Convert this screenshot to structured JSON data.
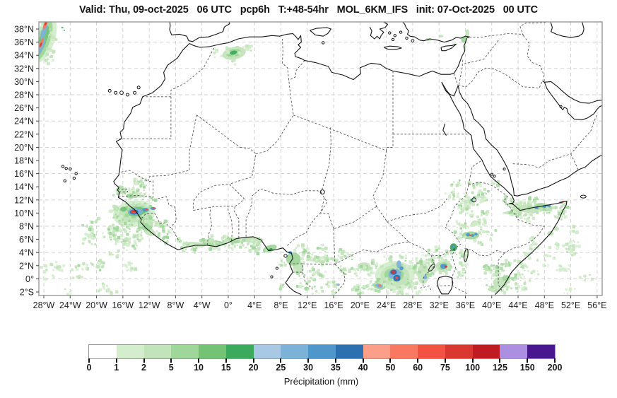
{
  "title": "Valid: Thu, 09-oct-2025   06 UTC   pcp6h   T:+48-54hr   MOL_6KM_IFS   init: 07-Oct-2025   00 UTC",
  "header": {
    "valid": "Thu, 09-oct-2025 06 UTC",
    "variable": "pcp6h",
    "lead": "T:+48-54hr",
    "model": "MOL_6KM_IFS",
    "init": "07-Oct-2025 00 UTC"
  },
  "axes": {
    "lon_tick_labels": [
      "28°W",
      "24°W",
      "20°W",
      "16°W",
      "12°W",
      "8°W",
      "4°W",
      "0°",
      "4°E",
      "8°E",
      "12°E",
      "16°E",
      "20°E",
      "24°E",
      "28°E",
      "32°E",
      "36°E",
      "40°E",
      "44°E",
      "48°E",
      "52°E",
      "56°E"
    ],
    "lon_tick_values": [
      -28,
      -24,
      -20,
      -16,
      -12,
      -8,
      -4,
      0,
      4,
      8,
      12,
      16,
      20,
      24,
      28,
      32,
      36,
      40,
      44,
      48,
      52,
      56
    ],
    "lat_tick_labels": [
      "38°N",
      "36°N",
      "34°N",
      "32°N",
      "30°N",
      "28°N",
      "26°N",
      "24°N",
      "22°N",
      "20°N",
      "18°N",
      "16°N",
      "14°N",
      "12°N",
      "10°N",
      "8°N",
      "6°N",
      "4°N",
      "2°N",
      "0°",
      "2°S"
    ],
    "lat_tick_values": [
      38,
      36,
      34,
      32,
      30,
      28,
      26,
      24,
      22,
      20,
      18,
      16,
      14,
      12,
      10,
      8,
      6,
      4,
      2,
      0,
      -2
    ],
    "lat_grid_values": [
      36,
      32,
      28,
      24,
      20,
      16,
      12,
      8,
      4,
      0
    ]
  },
  "colorbar": {
    "caption": "Précipitation (mm)",
    "levels": [
      "0",
      "1",
      "2",
      "5",
      "10",
      "15",
      "20",
      "25",
      "30",
      "35",
      "40",
      "50",
      "60",
      "75",
      "100",
      "125",
      "150",
      "200"
    ],
    "colors": [
      "#ffffff",
      "#d3edcd",
      "#c3e3ba",
      "#9fd69a",
      "#73c276",
      "#3caa5c",
      "#a9c8e4",
      "#7db2d8",
      "#4f96ca",
      "#2c70b0",
      "#fb9f88",
      "#f97862",
      "#f15244",
      "#d93831",
      "#bf1b23",
      "#ab90e1",
      "#49188e"
    ]
  },
  "chart_data": {
    "type": "heatmap",
    "subtype": "precipitation-forecast-map",
    "title": "Valid: Thu, 09-oct-2025 06 UTC pcp6h T:+48-54hr MOL_6KM_IFS init: 07-Oct-2025 00 UTC",
    "colorbar_label": "Précipitation (mm)",
    "colorbar_bounds_mm": [
      0,
      1,
      2,
      5,
      10,
      15,
      20,
      25,
      30,
      35,
      40,
      50,
      60,
      75,
      100,
      125,
      150,
      200
    ],
    "lon_range": [
      -28.7,
      56.8
    ],
    "lat_range": [
      -2.3,
      39.1
    ],
    "grid_step_deg": 4,
    "grid": "dashed gray every 4 degrees",
    "regions_summary": [
      "Intense cell ~75-100 mm near Guinea coast (14W, 10N) ringed by 20-40 mm blues and wide 1-10 mm greens",
      "Convective cluster over DR Congo (25E, 0-1N) with 35-100 mm cores",
      "Cell NE of Lake Victoria (33E, 2N) with 30-100 mm core",
      "Scattered 1-10 mm over Ethiopia, Gulf of Aden coast and Somalia with small 30-75 mm specks",
      "Frontal band in NE Atlantic corner (28W, 34-39N) with 25-100 mm core",
      "Isolated 2-20 mm blob over northern Algeria (1E, 34N)",
      "Light 1-10 mm band along Gulf of Guinea coast"
    ],
    "blobs_lon_lat_rx_ry_rot_lvl": [
      [
        -27.9,
        36.3,
        1.5,
        3.6,
        20,
        1
      ],
      [
        -28.1,
        36.2,
        1.0,
        3.2,
        20,
        3
      ],
      [
        -28.3,
        36.0,
        0.6,
        2.6,
        22,
        4
      ],
      [
        -28.4,
        35.3,
        0.35,
        1.4,
        22,
        7
      ],
      [
        -28.0,
        37.6,
        0.35,
        1.2,
        22,
        7
      ],
      [
        -28.35,
        35.9,
        0.2,
        0.8,
        22,
        11
      ],
      [
        -27.8,
        38.6,
        0.25,
        0.7,
        22,
        11
      ],
      [
        -27.7,
        38.9,
        0.15,
        0.4,
        22,
        13
      ],
      [
        -28.45,
        35.6,
        0.12,
        0.4,
        22,
        13
      ],
      [
        -25.2,
        38.2,
        0.16,
        0.11,
        0,
        5
      ],
      [
        -24.9,
        37.8,
        0.13,
        0.1,
        0,
        5
      ],
      [
        0.9,
        34.3,
        1.8,
        0.95,
        -12,
        2
      ],
      [
        0.85,
        34.35,
        1.15,
        0.6,
        -12,
        3
      ],
      [
        0.8,
        34.4,
        0.55,
        0.3,
        -12,
        5
      ],
      [
        -0.9,
        33.9,
        0.35,
        0.2,
        0,
        1
      ],
      [
        30.4,
        36.4,
        0.5,
        0.22,
        0,
        2
      ],
      [
        32.3,
        36.9,
        0.35,
        0.2,
        0,
        2
      ],
      [
        35.8,
        36.4,
        0.45,
        0.5,
        0,
        3
      ],
      [
        36.3,
        37.4,
        0.3,
        0.55,
        0,
        2
      ],
      [
        35.9,
        35.3,
        0.25,
        0.3,
        0,
        2
      ],
      [
        -14.3,
        9.9,
        3.2,
        2.0,
        -8,
        1
      ],
      [
        -14.2,
        10.0,
        2.4,
        1.4,
        -8,
        2
      ],
      [
        -14.0,
        10.15,
        1.8,
        0.95,
        -8,
        3
      ],
      [
        -13.9,
        10.2,
        1.35,
        0.7,
        -8,
        4
      ],
      [
        -14.1,
        10.2,
        1.05,
        0.55,
        0,
        7
      ],
      [
        -14.3,
        10.15,
        0.65,
        0.38,
        0,
        9
      ],
      [
        -14.35,
        10.2,
        0.42,
        0.26,
        0,
        12
      ],
      [
        -14.4,
        10.25,
        0.25,
        0.15,
        0,
        13
      ],
      [
        -12.55,
        10.5,
        0.5,
        0.3,
        0,
        8
      ],
      [
        -12.4,
        10.55,
        0.2,
        0.12,
        0,
        12
      ],
      [
        -11.4,
        10.7,
        0.45,
        0.22,
        0,
        8
      ],
      [
        -11.25,
        10.72,
        0.2,
        0.1,
        0,
        12
      ],
      [
        -15.9,
        10.6,
        0.5,
        0.35,
        0,
        4
      ],
      [
        -12.6,
        8.3,
        1.2,
        0.9,
        30,
        3
      ],
      [
        -12.0,
        7.2,
        0.9,
        0.6,
        30,
        2
      ],
      [
        -16.3,
        13.4,
        0.8,
        0.5,
        0,
        2
      ],
      [
        -14.8,
        12.6,
        0.7,
        0.4,
        0,
        3
      ],
      [
        9.4,
        4.0,
        0.3,
        0.2,
        0,
        8
      ],
      [
        9.9,
        3.0,
        1.1,
        1.0,
        0,
        3
      ],
      [
        10.6,
        1.8,
        0.8,
        1.0,
        0,
        2
      ],
      [
        16.7,
        -0.9,
        0.25,
        0.18,
        0,
        7
      ],
      [
        11.9,
        -1.5,
        0.4,
        0.3,
        0,
        3
      ],
      [
        -5.0,
        5.2,
        1.6,
        0.4,
        5,
        2
      ],
      [
        -2.2,
        5.4,
        1.7,
        0.45,
        3,
        3
      ],
      [
        0.8,
        5.9,
        1.4,
        0.4,
        3,
        2
      ],
      [
        3.8,
        5.9,
        1.5,
        0.45,
        0,
        2
      ],
      [
        6.3,
        4.6,
        1.1,
        0.5,
        -20,
        3
      ],
      [
        6.4,
        4.45,
        0.35,
        0.2,
        -20,
        5
      ],
      [
        25.3,
        0.5,
        3.0,
        2.2,
        0,
        1
      ],
      [
        25.3,
        0.5,
        2.2,
        1.6,
        0,
        2
      ],
      [
        25.2,
        0.6,
        1.5,
        1.05,
        0,
        3
      ],
      [
        25.3,
        0.7,
        1.0,
        0.8,
        0,
        7
      ],
      [
        25.6,
        0.1,
        0.55,
        0.5,
        0,
        9
      ],
      [
        25.1,
        1.0,
        0.5,
        0.4,
        0,
        9
      ],
      [
        25.05,
        1.05,
        0.3,
        0.25,
        0,
        13
      ],
      [
        25.55,
        0.15,
        0.2,
        0.18,
        0,
        12
      ],
      [
        25.9,
        2.2,
        0.35,
        0.6,
        0,
        7
      ],
      [
        26.3,
        1.6,
        0.3,
        0.3,
        0,
        8
      ],
      [
        22.9,
        -1.1,
        0.95,
        0.5,
        15,
        3
      ],
      [
        22.9,
        -1.05,
        0.6,
        0.3,
        15,
        7
      ],
      [
        22.95,
        -1.0,
        0.25,
        0.15,
        0,
        11
      ],
      [
        20.6,
        1.9,
        1.0,
        0.6,
        0,
        2
      ],
      [
        29.6,
        0.8,
        0.9,
        1.6,
        0,
        2
      ],
      [
        29.9,
        0.2,
        0.3,
        0.3,
        0,
        7
      ],
      [
        32.7,
        1.9,
        1.2,
        0.9,
        0,
        2
      ],
      [
        32.65,
        1.9,
        0.8,
        0.6,
        0,
        3
      ],
      [
        32.7,
        1.9,
        0.5,
        0.4,
        0,
        8
      ],
      [
        33.05,
        1.85,
        0.2,
        0.15,
        0,
        13
      ],
      [
        34.2,
        4.8,
        0.55,
        0.6,
        0,
        5
      ],
      [
        34.15,
        4.9,
        0.22,
        0.2,
        0,
        8
      ],
      [
        36.8,
        6.6,
        1.3,
        0.6,
        0,
        3
      ],
      [
        36.4,
        6.7,
        0.3,
        0.25,
        0,
        8
      ],
      [
        37.1,
        6.6,
        0.28,
        0.2,
        0,
        8
      ],
      [
        37.6,
        6.8,
        0.25,
        0.2,
        0,
        8
      ],
      [
        36.75,
        6.6,
        0.15,
        0.12,
        0,
        12
      ],
      [
        36.9,
        11.8,
        0.5,
        0.4,
        0,
        3
      ],
      [
        36.9,
        12.0,
        0.2,
        0.18,
        0,
        7
      ],
      [
        45.6,
        10.6,
        1.5,
        0.65,
        8,
        2
      ],
      [
        47.8,
        10.9,
        1.4,
        0.6,
        8,
        3
      ],
      [
        46.8,
        10.8,
        0.3,
        0.2,
        0,
        8
      ],
      [
        48.0,
        11.0,
        0.3,
        0.2,
        0,
        8
      ],
      [
        48.7,
        11.1,
        0.28,
        0.18,
        0,
        8
      ],
      [
        50.5,
        11.6,
        0.3,
        0.2,
        0,
        7
      ],
      [
        50.75,
        11.7,
        0.18,
        0.13,
        0,
        12
      ],
      [
        43.9,
        10.3,
        0.8,
        0.4,
        0,
        2
      ],
      [
        48.9,
        6.9,
        0.5,
        0.35,
        0,
        2
      ],
      [
        49.8,
        7.6,
        0.4,
        0.3,
        0,
        2
      ],
      [
        41.3,
        -0.6,
        1.1,
        0.9,
        0,
        2
      ],
      [
        42.2,
        0.1,
        0.6,
        0.45,
        0,
        3
      ],
      [
        40.6,
        -1.6,
        0.8,
        0.5,
        0,
        2
      ],
      [
        54.9,
        0.6,
        0.2,
        0.12,
        0,
        2
      ]
    ],
    "speckle_fields_box_n_seed_levels": [
      [
        -23,
        1,
        -13.5,
        9,
        150,
        7,
        [
          1,
          1,
          2,
          2,
          3
        ]
      ],
      [
        -17.5,
        5.5,
        -9,
        12.8,
        200,
        11,
        [
          1,
          2,
          2,
          3,
          3
        ]
      ],
      [
        -17,
        12.5,
        -12.5,
        15.3,
        70,
        3,
        [
          1,
          2,
          2,
          3
        ]
      ],
      [
        -8,
        4.3,
        7.5,
        6.4,
        150,
        13,
        [
          1,
          2,
          2,
          3
        ]
      ],
      [
        8,
        -2.2,
        19,
        5,
        180,
        17,
        [
          1,
          2,
          2,
          3
        ]
      ],
      [
        19,
        -2.2,
        31.5,
        3.6,
        250,
        23,
        [
          1,
          1,
          2,
          2,
          3
        ]
      ],
      [
        29,
        0,
        36,
        5.2,
        130,
        29,
        [
          1,
          2,
          2,
          3
        ]
      ],
      [
        33,
        4,
        40.5,
        14.5,
        200,
        31,
        [
          1,
          1,
          2,
          2,
          3
        ]
      ],
      [
        42,
        9.3,
        51,
        12.2,
        150,
        37,
        [
          1,
          2,
          2,
          3
        ]
      ],
      [
        45,
        2,
        53,
        8.5,
        90,
        41,
        [
          1,
          1,
          2
        ]
      ],
      [
        38.5,
        -2.2,
        45,
        2.5,
        120,
        43,
        [
          1,
          2,
          2,
          3
        ]
      ],
      [
        44,
        -2.2,
        56.5,
        2,
        40,
        47,
        [
          1,
          1,
          2
        ]
      ],
      [
        -28.5,
        -2.2,
        -14,
        2.5,
        70,
        53,
        [
          1,
          1,
          2
        ]
      ],
      [
        -28.6,
        33,
        -26.2,
        39.4,
        60,
        59,
        [
          1,
          2,
          2
        ]
      ],
      [
        -2,
        33.2,
        3.5,
        35.6,
        40,
        61,
        [
          1,
          2
        ]
      ]
    ]
  }
}
